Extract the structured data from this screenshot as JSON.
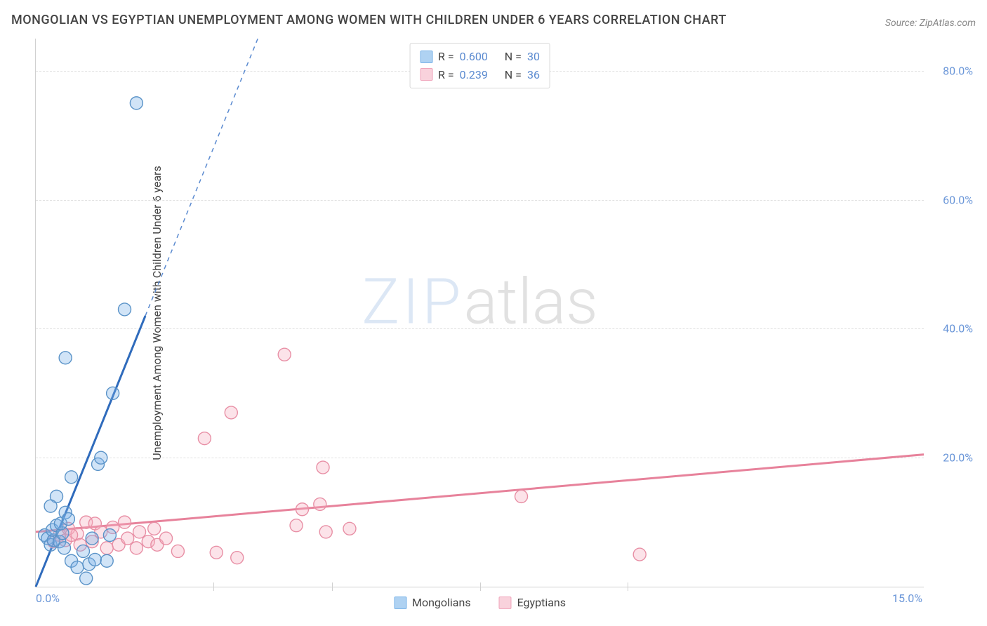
{
  "title": "MONGOLIAN VS EGYPTIAN UNEMPLOYMENT AMONG WOMEN WITH CHILDREN UNDER 6 YEARS CORRELATION CHART",
  "source": "Source: ZipAtlas.com",
  "ylabel": "Unemployment Among Women with Children Under 6 years",
  "watermark_a": "ZIP",
  "watermark_b": "atlas",
  "chart": {
    "type": "scatter",
    "background_color": "#ffffff",
    "grid_color": "#e0e0e0",
    "axis_color": "#d0d0d0",
    "tick_label_color": "#6a96d8",
    "tick_fontsize": 16,
    "title_fontsize": 18,
    "title_color": "#444444",
    "xlim": [
      0.0,
      15.0
    ],
    "ylim": [
      0.0,
      85.0
    ],
    "xticks": [
      0.0,
      15.0
    ],
    "xtick_labels": [
      "0.0%",
      "15.0%"
    ],
    "xtick_bare": [
      3.0,
      5.0,
      7.5,
      10.0
    ],
    "yticks": [
      20.0,
      40.0,
      60.0,
      80.0
    ],
    "ytick_labels": [
      "20.0%",
      "40.0%",
      "60.0%",
      "80.0%"
    ],
    "marker_radius": 9,
    "marker_stroke_width": 1.4,
    "marker_fill_opacity": 0.35,
    "series": [
      {
        "name": "Mongolians",
        "color": "#7ab3e8",
        "stroke": "#5a93c8",
        "line_color": "#2f6bbc",
        "line_width": 3,
        "dash_color": "#5a8ad0",
        "R": "0.600",
        "N": "30",
        "trend": {
          "x1": 0.0,
          "y1": 0.0,
          "x2": 1.85,
          "y2": 42.0,
          "x2_ext": 3.75,
          "y2_ext": 85.0
        },
        "points": [
          [
            0.15,
            8.0
          ],
          [
            0.2,
            7.5
          ],
          [
            0.25,
            6.5
          ],
          [
            0.3,
            7.2
          ],
          [
            0.28,
            8.8
          ],
          [
            0.35,
            9.5
          ],
          [
            0.4,
            7.0
          ],
          [
            0.45,
            8.3
          ],
          [
            0.42,
            9.8
          ],
          [
            0.5,
            11.5
          ],
          [
            0.48,
            6.0
          ],
          [
            0.55,
            10.5
          ],
          [
            0.6,
            4.0
          ],
          [
            0.7,
            3.0
          ],
          [
            0.8,
            5.5
          ],
          [
            0.85,
            1.3
          ],
          [
            0.9,
            3.5
          ],
          [
            1.0,
            4.2
          ],
          [
            0.6,
            17.0
          ],
          [
            1.05,
            19.0
          ],
          [
            1.1,
            20.0
          ],
          [
            1.2,
            4.0
          ],
          [
            1.25,
            8.0
          ],
          [
            1.3,
            30.0
          ],
          [
            0.5,
            35.5
          ],
          [
            1.5,
            43.0
          ],
          [
            0.35,
            14.0
          ],
          [
            0.25,
            12.5
          ],
          [
            0.95,
            7.5
          ],
          [
            1.7,
            75.0
          ]
        ]
      },
      {
        "name": "Egyptians",
        "color": "#f5aec0",
        "stroke": "#e88fa5",
        "line_color": "#e7829b",
        "line_width": 3,
        "R": "0.239",
        "N": "36",
        "trend": {
          "x1": 0.0,
          "y1": 8.5,
          "x2": 15.0,
          "y2": 20.5
        },
        "points": [
          [
            0.3,
            7.0
          ],
          [
            0.4,
            8.0
          ],
          [
            0.5,
            7.2
          ],
          [
            0.55,
            9.0
          ],
          [
            0.7,
            8.2
          ],
          [
            0.75,
            6.5
          ],
          [
            0.85,
            10.0
          ],
          [
            0.95,
            7.0
          ],
          [
            1.0,
            9.8
          ],
          [
            1.1,
            8.5
          ],
          [
            1.2,
            6.0
          ],
          [
            1.3,
            9.2
          ],
          [
            1.4,
            6.5
          ],
          [
            1.5,
            10.0
          ],
          [
            1.7,
            6.0
          ],
          [
            1.75,
            8.5
          ],
          [
            1.9,
            7.0
          ],
          [
            2.0,
            9.0
          ],
          [
            2.05,
            6.5
          ],
          [
            2.2,
            7.5
          ],
          [
            2.4,
            5.5
          ],
          [
            2.85,
            23.0
          ],
          [
            3.05,
            5.3
          ],
          [
            3.3,
            27.0
          ],
          [
            3.4,
            4.5
          ],
          [
            4.2,
            36.0
          ],
          [
            4.4,
            9.5
          ],
          [
            4.5,
            12.0
          ],
          [
            4.8,
            12.8
          ],
          [
            4.85,
            18.5
          ],
          [
            4.9,
            8.5
          ],
          [
            5.3,
            9.0
          ],
          [
            8.2,
            14.0
          ],
          [
            10.2,
            5.0
          ],
          [
            0.6,
            8.0
          ],
          [
            1.55,
            7.5
          ]
        ]
      }
    ]
  },
  "legend_top_labels": {
    "r": "R =",
    "n": "N ="
  },
  "legend_bottom": [
    {
      "label": "Mongolians",
      "fill": "#afd2f2",
      "stroke": "#7ab3e8"
    },
    {
      "label": "Egyptians",
      "fill": "#f9d2dc",
      "stroke": "#f0a5bb"
    }
  ],
  "legend_top_swatches": [
    {
      "fill": "#afd2f2",
      "stroke": "#7ab3e8"
    },
    {
      "fill": "#f9d2dc",
      "stroke": "#f0a5bb"
    }
  ]
}
